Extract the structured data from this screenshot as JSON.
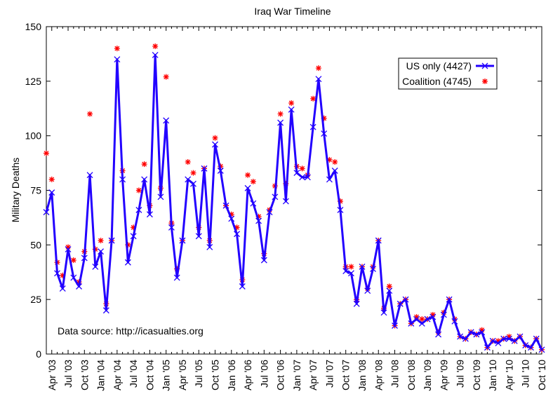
{
  "chart_data": {
    "type": "line",
    "title": "Iraq War Timeline",
    "xlabel": "",
    "ylabel": "Military Deaths",
    "ylim": [
      0,
      150
    ],
    "yticks": [
      "0",
      "25",
      "50",
      "75",
      "100",
      "125",
      "150"
    ],
    "xlim": [
      "2003-03",
      "2010-10"
    ],
    "xticks": [
      "Apr '03",
      "Jul '03",
      "Oct '03",
      "Jan '04",
      "Apr '04",
      "Jul '04",
      "Oct '04",
      "Jan '05",
      "Apr '05",
      "Jul '05",
      "Oct '05",
      "Jan '06",
      "Apr '06",
      "Jul '06",
      "Oct '06",
      "Jan '07",
      "Apr '07",
      "Jul '07",
      "Oct '07",
      "Jan '08",
      "Apr '08",
      "Jul '08",
      "Oct '08",
      "Jan '09",
      "Apr '09",
      "Jul '09",
      "Oct '09",
      "Jan '10",
      "Apr '10",
      "Jul '10",
      "Oct '10"
    ],
    "legend_position": "top-right",
    "grid": false,
    "annotation": "Data source: http://icasualties.org",
    "series": [
      {
        "name": "US only (4427)",
        "style": "line+markers",
        "color": "#2200ff",
        "marker": "x",
        "x": [
          "2003-03",
          "2003-04",
          "2003-05",
          "2003-06",
          "2003-07",
          "2003-08",
          "2003-09",
          "2003-10",
          "2003-11",
          "2003-12",
          "2004-01",
          "2004-02",
          "2004-03",
          "2004-04",
          "2004-05",
          "2004-06",
          "2004-07",
          "2004-08",
          "2004-09",
          "2004-10",
          "2004-11",
          "2004-12",
          "2005-01",
          "2005-02",
          "2005-03",
          "2005-04",
          "2005-05",
          "2005-06",
          "2005-07",
          "2005-08",
          "2005-09",
          "2005-10",
          "2005-11",
          "2005-12",
          "2006-01",
          "2006-02",
          "2006-03",
          "2006-04",
          "2006-05",
          "2006-06",
          "2006-07",
          "2006-08",
          "2006-09",
          "2006-10",
          "2006-11",
          "2006-12",
          "2007-01",
          "2007-02",
          "2007-03",
          "2007-04",
          "2007-05",
          "2007-06",
          "2007-07",
          "2007-08",
          "2007-09",
          "2007-10",
          "2007-11",
          "2007-12",
          "2008-01",
          "2008-02",
          "2008-03",
          "2008-04",
          "2008-05",
          "2008-06",
          "2008-07",
          "2008-08",
          "2008-09",
          "2008-10",
          "2008-11",
          "2008-12",
          "2009-01",
          "2009-02",
          "2009-03",
          "2009-04",
          "2009-05",
          "2009-06",
          "2009-07",
          "2009-08",
          "2009-09",
          "2009-10",
          "2009-11",
          "2009-12",
          "2010-01",
          "2010-02",
          "2010-03",
          "2010-04",
          "2010-05",
          "2010-06",
          "2010-07",
          "2010-08",
          "2010-09",
          "2010-10"
        ],
        "values": [
          65,
          74,
          37,
          30,
          48,
          35,
          31,
          44,
          82,
          40,
          47,
          20,
          52,
          135,
          80,
          42,
          54,
          66,
          80,
          64,
          137,
          72,
          107,
          58,
          35,
          52,
          80,
          78,
          54,
          85,
          49,
          96,
          84,
          68,
          62,
          55,
          31,
          76,
          69,
          61,
          43,
          65,
          72,
          106,
          70,
          112,
          83,
          81,
          81,
          104,
          126,
          101,
          80,
          84,
          66,
          38,
          37,
          23,
          40,
          29,
          39,
          52,
          19,
          29,
          13,
          23,
          25,
          14,
          16,
          14,
          16,
          17,
          9,
          18,
          25,
          15,
          8,
          7,
          10,
          9,
          10,
          3,
          6,
          5,
          7,
          7,
          6,
          8,
          4,
          3,
          7,
          2
        ]
      },
      {
        "name": "Coalition (4745)",
        "style": "markers",
        "color": "#ff0000",
        "marker": "asterisk",
        "x": [
          "2003-03",
          "2003-04",
          "2003-05",
          "2003-06",
          "2003-07",
          "2003-08",
          "2003-09",
          "2003-10",
          "2003-11",
          "2003-12",
          "2004-01",
          "2004-02",
          "2004-03",
          "2004-04",
          "2004-05",
          "2004-06",
          "2004-07",
          "2004-08",
          "2004-09",
          "2004-10",
          "2004-11",
          "2004-12",
          "2005-01",
          "2005-02",
          "2005-03",
          "2005-04",
          "2005-05",
          "2005-06",
          "2005-07",
          "2005-08",
          "2005-09",
          "2005-10",
          "2005-11",
          "2005-12",
          "2006-01",
          "2006-02",
          "2006-03",
          "2006-04",
          "2006-05",
          "2006-06",
          "2006-07",
          "2006-08",
          "2006-09",
          "2006-10",
          "2006-11",
          "2006-12",
          "2007-01",
          "2007-02",
          "2007-03",
          "2007-04",
          "2007-05",
          "2007-06",
          "2007-07",
          "2007-08",
          "2007-09",
          "2007-10",
          "2007-11",
          "2007-12",
          "2008-01",
          "2008-02",
          "2008-03",
          "2008-04",
          "2008-05",
          "2008-06",
          "2008-07",
          "2008-08",
          "2008-09",
          "2008-10",
          "2008-11",
          "2008-12",
          "2009-01",
          "2009-02",
          "2009-03",
          "2009-04",
          "2009-05",
          "2009-06",
          "2009-07",
          "2009-08",
          "2009-09",
          "2009-10",
          "2009-11",
          "2009-12",
          "2010-01",
          "2010-02",
          "2010-03",
          "2010-04",
          "2010-05",
          "2010-06",
          "2010-07",
          "2010-08",
          "2010-09",
          "2010-10"
        ],
        "values": [
          92,
          80,
          42,
          36,
          49,
          43,
          33,
          47,
          110,
          48,
          52,
          23,
          52,
          140,
          84,
          50,
          58,
          75,
          87,
          68,
          141,
          76,
          127,
          60,
          39,
          52,
          88,
          83,
          58,
          85,
          52,
          99,
          86,
          68,
          64,
          58,
          34,
          82,
          79,
          63,
          46,
          66,
          77,
          110,
          78,
          115,
          86,
          85,
          82,
          117,
          131,
          108,
          89,
          88,
          70,
          40,
          40,
          25,
          40,
          30,
          40,
          52,
          21,
          31,
          13,
          23,
          25,
          14,
          17,
          16,
          16,
          18,
          10,
          19,
          25,
          16,
          8,
          7,
          10,
          9,
          11,
          3,
          6,
          6,
          7,
          8,
          6,
          8,
          4,
          3,
          7,
          2
        ]
      }
    ]
  }
}
